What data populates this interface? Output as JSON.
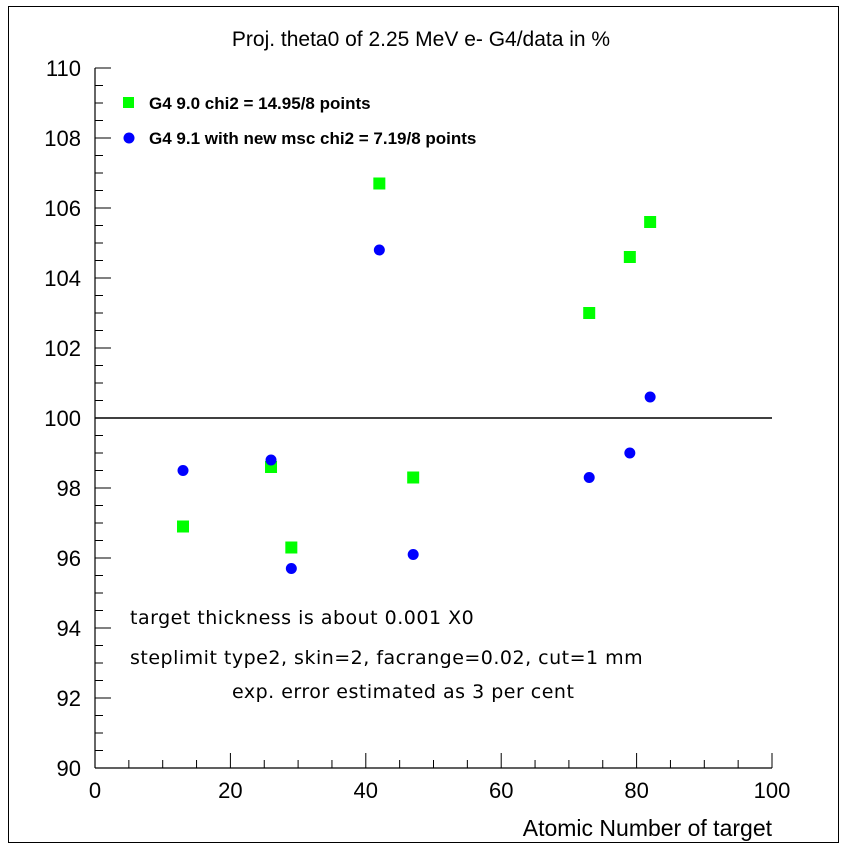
{
  "chart_data": {
    "type": "scatter",
    "title": "Proj. theta0 of 2.25 MeV e-  G4/data in %",
    "xlabel": "Atomic Number of target",
    "ylabel": "",
    "xlim": [
      0,
      100
    ],
    "ylim": [
      90,
      110
    ],
    "x_ticks": [
      0,
      20,
      40,
      60,
      80,
      100
    ],
    "x_tick_labels": [
      "0",
      "20",
      "40",
      "60",
      "80",
      "100"
    ],
    "y_ticks": [
      90,
      92,
      94,
      96,
      98,
      100,
      102,
      104,
      106,
      108,
      110
    ],
    "y_tick_labels": [
      "90",
      "92",
      "94",
      "96",
      "98",
      "100",
      "102",
      "104",
      "106",
      "108",
      "110"
    ],
    "reference_line": 100,
    "grid": false,
    "legend_position": "top-left",
    "series": [
      {
        "name": "G4 9.0  chi2 = 14.95/8 points",
        "marker": "square",
        "color": "#00ff00",
        "x": [
          13,
          26,
          29,
          42,
          47,
          73,
          79,
          82
        ],
        "y": [
          96.9,
          98.6,
          96.3,
          106.7,
          98.3,
          103.0,
          104.6,
          105.6
        ]
      },
      {
        "name": "G4 9.1 with new msc chi2 = 7.19/8 points",
        "marker": "circle",
        "color": "#0000ff",
        "x": [
          13,
          26,
          29,
          42,
          47,
          73,
          79,
          82
        ],
        "y": [
          98.5,
          98.8,
          95.7,
          104.8,
          96.1,
          98.3,
          99.0,
          100.6
        ]
      }
    ],
    "annotations": [
      "target thickness is about 0.001 X0",
      "steplimit type2, skin=2, facrange=0.02, cut=1 mm",
      "exp. error estimated as 3 per cent"
    ]
  }
}
